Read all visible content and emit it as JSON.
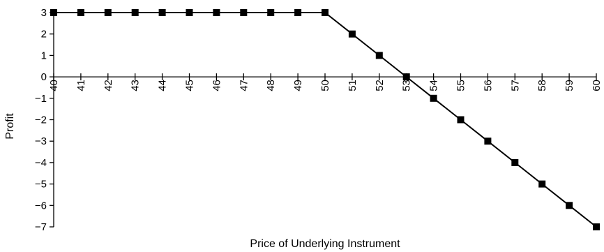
{
  "chart_data": {
    "type": "line",
    "title": "",
    "xlabel": "Price of Underlying Instrument",
    "ylabel": "Profit",
    "x": [
      40,
      41,
      42,
      43,
      44,
      45,
      46,
      47,
      48,
      49,
      50,
      51,
      52,
      53,
      54,
      55,
      56,
      57,
      58,
      59,
      60
    ],
    "series": [
      {
        "values": [
          3,
          3,
          3,
          3,
          3,
          3,
          3,
          3,
          3,
          3,
          3,
          2,
          1,
          0,
          -1,
          -2,
          -3,
          -4,
          -5,
          -6,
          -7
        ],
        "color": "#000000",
        "marker": "square"
      }
    ],
    "xlim": [
      40,
      60
    ],
    "ylim": [
      -7,
      3
    ],
    "x_ticks": [
      "40",
      "41",
      "42",
      "43",
      "44",
      "45",
      "46",
      "47",
      "48",
      "49",
      "50",
      "51",
      "52",
      "53",
      "54",
      "55",
      "56",
      "57",
      "58",
      "59",
      "60"
    ],
    "y_ticks": [
      "3",
      "2",
      "1",
      "0",
      "−1",
      "−2",
      "−3",
      "−4",
      "−5",
      "−6",
      "−7"
    ],
    "grid": false,
    "legend": "none"
  }
}
